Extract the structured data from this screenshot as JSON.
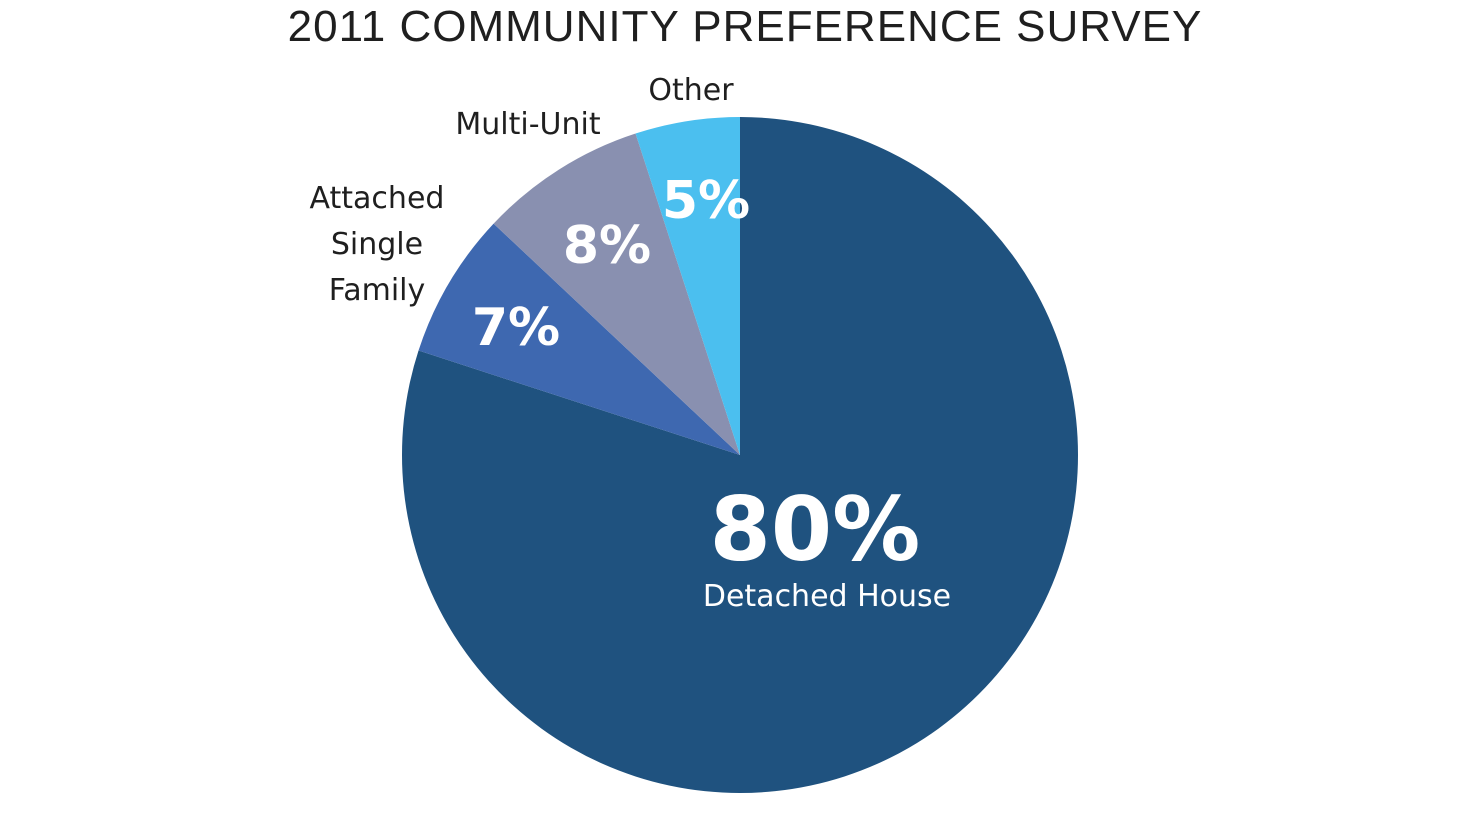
{
  "chart_data": {
    "type": "pie",
    "title": "2011 COMMUNITY PREFERENCE SURVEY",
    "slices": [
      {
        "label": "Detached House",
        "value": 80,
        "display": "80%",
        "color": "#1f527f"
      },
      {
        "label": "Attached Single Family",
        "label_lines": [
          "Attached",
          "Single",
          "Family"
        ],
        "value": 7,
        "display": "7%",
        "color": "#3e68b0"
      },
      {
        "label": "Multi-Unit",
        "value": 8,
        "display": "8%",
        "color": "#8990b0"
      },
      {
        "label": "Other",
        "value": 5,
        "display": "5%",
        "color": "#4bbfef"
      }
    ]
  }
}
